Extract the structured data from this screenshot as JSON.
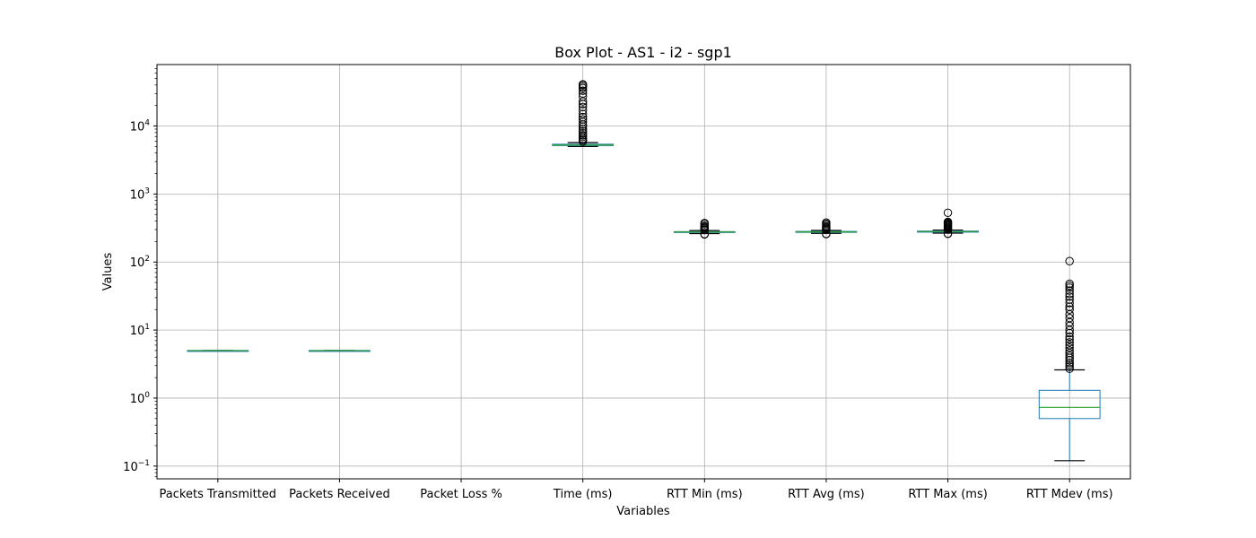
{
  "chart_data": {
    "type": "box",
    "title": "Box Plot - AS1 - i2 - sgp1",
    "xlabel": "Variables",
    "ylabel": "Values",
    "yscale": "log",
    "ylim": [
      0.065,
      80000
    ],
    "grid": true,
    "y_ticks": [
      {
        "value": 0.1,
        "mantissa": "10",
        "exp": "−1"
      },
      {
        "value": 1,
        "mantissa": "10",
        "exp": "0"
      },
      {
        "value": 10,
        "mantissa": "10",
        "exp": "1"
      },
      {
        "value": 100,
        "mantissa": "10",
        "exp": "2"
      },
      {
        "value": 1000,
        "mantissa": "10",
        "exp": "3"
      },
      {
        "value": 10000,
        "mantissa": "10",
        "exp": "4"
      }
    ],
    "categories": [
      "Packets Transmitted",
      "Packets Received",
      "Packet Loss %",
      "Time (ms)",
      "RTT Min (ms)",
      "RTT Avg (ms)",
      "RTT Max (ms)",
      "RTT Mdev (ms)"
    ],
    "boxes": [
      {
        "name": "Packets Transmitted",
        "whislo": 5,
        "q1": 5,
        "med": 5,
        "q3": 5,
        "whishi": 5,
        "fliers": []
      },
      {
        "name": "Packets Received",
        "whislo": 5,
        "q1": 5,
        "med": 5,
        "q3": 5,
        "whishi": 5,
        "fliers": []
      },
      {
        "name": "Packet Loss %",
        "whislo": 0,
        "q1": 0,
        "med": 0,
        "q3": 0,
        "whishi": 0,
        "fliers": []
      },
      {
        "name": "Time (ms)",
        "whislo": 5000,
        "q1": 5150,
        "med": 5250,
        "q3": 5400,
        "whishi": 5700,
        "fliers": [
          5900,
          6200,
          6500,
          6900,
          7300,
          7800,
          8400,
          9000,
          9800,
          10500,
          11500,
          12500,
          13500,
          15000,
          17000,
          19000,
          21000,
          23000,
          27000,
          30000,
          33000,
          36000,
          38000,
          40000,
          41000
        ]
      },
      {
        "name": "RTT Min (ms)",
        "whislo": 262,
        "q1": 272,
        "med": 276,
        "q3": 280,
        "whishi": 290,
        "fliers": [
          255,
          258,
          295,
          300,
          310,
          320,
          330,
          340,
          360,
          375
        ]
      },
      {
        "name": "RTT Avg (ms)",
        "whislo": 264,
        "q1": 273,
        "med": 277,
        "q3": 282,
        "whishi": 292,
        "fliers": [
          258,
          260,
          297,
          305,
          315,
          325,
          335,
          350,
          365,
          380
        ]
      },
      {
        "name": "RTT Max (ms)",
        "whislo": 266,
        "q1": 275,
        "med": 280,
        "q3": 285,
        "whishi": 295,
        "fliers": [
          260,
          262,
          300,
          310,
          320,
          330,
          340,
          350,
          360,
          370,
          380,
          390,
          530
        ]
      },
      {
        "name": "RTT Mdev (ms)",
        "whislo": 0.12,
        "q1": 0.5,
        "med": 0.73,
        "q3": 1.3,
        "whishi": 2.6,
        "fliers": [
          2.7,
          2.9,
          3.1,
          3.3,
          3.6,
          3.9,
          4.2,
          4.6,
          5.0,
          5.5,
          6.0,
          6.6,
          7.3,
          8.0,
          9.0,
          10,
          11.5,
          13,
          15,
          17,
          20,
          22,
          25,
          28,
          31,
          34,
          38,
          42,
          45,
          48,
          103
        ]
      }
    ],
    "colors": {
      "box": "#1f77b4",
      "median": "#2ca02c",
      "whisker": "#000000",
      "grid": "#b0b0b0"
    }
  }
}
